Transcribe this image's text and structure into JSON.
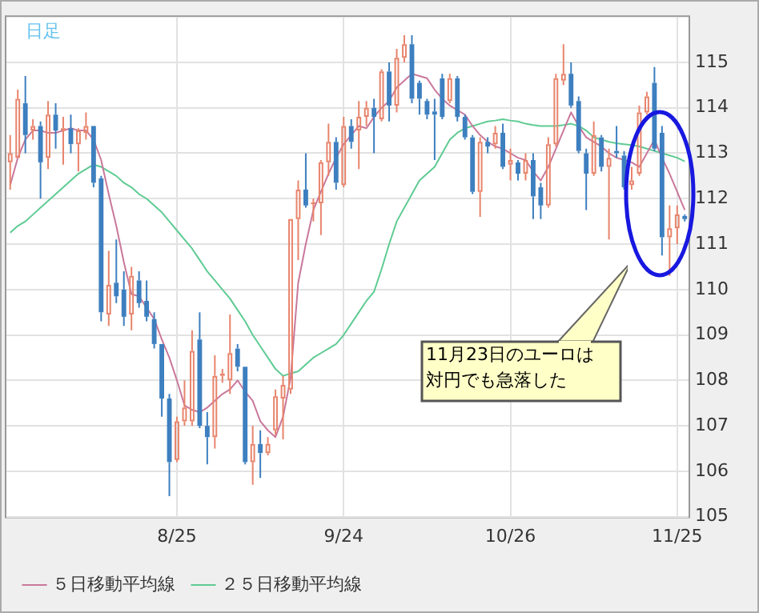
{
  "chart_data": {
    "type": "candlestick",
    "categories": [
      null,
      null,
      null,
      null,
      null,
      null,
      null,
      null,
      null,
      null,
      null,
      null,
      null,
      null,
      null,
      null,
      null,
      null,
      null,
      null,
      null,
      null,
      "8/25",
      null,
      null,
      null,
      null,
      null,
      null,
      null,
      null,
      null,
      null,
      null,
      null,
      null,
      null,
      null,
      null,
      null,
      null,
      null,
      null,
      null,
      "9/24",
      null,
      null,
      null,
      null,
      null,
      null,
      null,
      null,
      null,
      null,
      null,
      null,
      null,
      null,
      null,
      null,
      null,
      null,
      null,
      null,
      null,
      "10/26",
      null,
      null,
      null,
      null,
      null,
      null,
      null,
      null,
      null,
      null,
      null,
      null,
      null,
      null,
      null,
      null,
      null,
      null,
      null,
      null,
      null,
      "11/25",
      null
    ],
    "ohlc": [
      [
        112.8,
        113.4,
        112.2,
        113.0
      ],
      [
        112.9,
        114.4,
        112.9,
        114.2
      ],
      [
        114.1,
        114.7,
        113.0,
        113.4
      ],
      [
        113.5,
        113.75,
        113.3,
        113.6
      ],
      [
        113.6,
        113.7,
        112.0,
        112.8
      ],
      [
        112.9,
        114.15,
        112.65,
        113.85
      ],
      [
        113.85,
        114.1,
        113.1,
        113.5
      ],
      [
        113.5,
        113.8,
        112.75,
        113.55
      ],
      [
        113.55,
        113.85,
        113.0,
        113.2
      ],
      [
        113.2,
        113.55,
        112.6,
        113.5
      ],
      [
        113.45,
        113.9,
        113.3,
        113.6
      ],
      [
        113.6,
        113.6,
        112.25,
        112.35
      ],
      [
        112.45,
        112.5,
        109.3,
        109.5
      ],
      [
        109.45,
        110.85,
        109.2,
        110.1
      ],
      [
        110.15,
        111.1,
        109.7,
        109.85
      ],
      [
        110.0,
        110.4,
        109.2,
        109.4
      ],
      [
        109.45,
        110.5,
        109.1,
        110.3
      ],
      [
        110.2,
        110.4,
        109.6,
        109.7
      ],
      [
        109.75,
        110.2,
        109.3,
        109.4
      ],
      [
        109.35,
        109.5,
        108.7,
        108.8
      ],
      [
        108.8,
        108.8,
        107.2,
        107.6
      ],
      [
        107.6,
        107.7,
        105.45,
        106.2
      ],
      [
        106.25,
        107.2,
        106.2,
        107.1
      ],
      [
        107.1,
        108.0,
        107.0,
        107.4
      ],
      [
        107.1,
        109.1,
        107.0,
        108.65
      ],
      [
        108.9,
        109.5,
        106.95,
        107.0
      ],
      [
        107.0,
        107.3,
        106.15,
        106.75
      ],
      [
        106.75,
        108.55,
        106.5,
        108.1
      ],
      [
        108.1,
        108.25,
        107.95,
        108.15
      ],
      [
        108.0,
        109.45,
        107.7,
        108.6
      ],
      [
        108.7,
        108.8,
        108.2,
        108.3
      ],
      [
        108.3,
        108.3,
        106.15,
        106.2
      ],
      [
        106.2,
        107.0,
        105.7,
        106.6
      ],
      [
        106.6,
        106.9,
        105.85,
        106.4
      ],
      [
        106.4,
        106.75,
        106.35,
        106.6
      ],
      [
        106.9,
        107.8,
        106.8,
        107.65
      ],
      [
        107.6,
        108.1,
        106.7,
        107.9
      ],
      [
        107.8,
        111.55,
        107.7,
        111.55
      ],
      [
        111.55,
        112.4,
        110.65,
        112.2
      ],
      [
        112.2,
        113.0,
        111.8,
        111.85
      ],
      [
        111.88,
        112.0,
        111.5,
        111.92
      ],
      [
        111.9,
        112.85,
        111.2,
        112.8
      ],
      [
        112.8,
        113.65,
        112.5,
        113.25
      ],
      [
        113.25,
        113.35,
        112.2,
        112.35
      ],
      [
        112.3,
        113.8,
        112.25,
        113.6
      ],
      [
        113.6,
        113.75,
        113.1,
        113.25
      ],
      [
        113.5,
        114.15,
        112.65,
        113.8
      ],
      [
        113.8,
        114.15,
        113.6,
        114.0
      ],
      [
        114.0,
        114.2,
        113.0,
        113.8
      ],
      [
        113.75,
        114.85,
        113.7,
        114.8
      ],
      [
        114.8,
        115.0,
        113.7,
        114.05
      ],
      [
        114.05,
        115.3,
        113.9,
        115.1
      ],
      [
        115.1,
        115.6,
        115.0,
        115.4
      ],
      [
        115.4,
        115.6,
        114.1,
        114.2
      ],
      [
        114.55,
        114.6,
        113.85,
        114.2
      ],
      [
        114.15,
        114.2,
        113.75,
        113.85
      ],
      [
        113.92,
        114.2,
        112.85,
        113.85
      ],
      [
        114.65,
        114.75,
        113.75,
        113.8
      ],
      [
        114.15,
        114.75,
        114.1,
        114.65
      ],
      [
        114.65,
        114.7,
        113.7,
        113.8
      ],
      [
        113.8,
        113.85,
        113.3,
        113.35
      ],
      [
        113.35,
        113.4,
        112.1,
        112.15
      ],
      [
        112.15,
        113.35,
        111.6,
        113.25
      ],
      [
        113.25,
        113.35,
        113.0,
        113.15
      ],
      [
        113.2,
        113.6,
        113.1,
        113.45
      ],
      [
        113.45,
        113.65,
        112.65,
        112.7
      ],
      [
        112.75,
        113.1,
        112.4,
        112.85
      ],
      [
        112.8,
        112.85,
        112.4,
        112.55
      ],
      [
        112.55,
        113.0,
        112.4,
        112.85
      ],
      [
        112.85,
        113.0,
        111.55,
        112.05
      ],
      [
        112.25,
        112.35,
        111.55,
        111.85
      ],
      [
        111.85,
        113.35,
        111.8,
        113.2
      ],
      [
        113.2,
        114.75,
        113.15,
        114.65
      ],
      [
        114.6,
        115.4,
        114.5,
        114.75
      ],
      [
        114.75,
        115.0,
        114.0,
        114.05
      ],
      [
        114.15,
        114.25,
        113.0,
        113.05
      ],
      [
        113.0,
        113.1,
        111.75,
        112.55
      ],
      [
        112.55,
        113.7,
        112.5,
        113.4
      ],
      [
        113.35,
        113.4,
        112.6,
        112.7
      ],
      [
        112.7,
        113.1,
        111.1,
        112.9
      ],
      [
        113.05,
        113.6,
        112.9,
        113.0
      ],
      [
        112.95,
        113.05,
        112.2,
        112.25
      ],
      [
        112.3,
        112.7,
        112.2,
        112.4
      ],
      [
        112.55,
        114.05,
        112.5,
        113.9
      ],
      [
        113.9,
        114.35,
        113.85,
        114.25
      ],
      [
        114.55,
        114.9,
        113.05,
        113.1
      ],
      [
        113.45,
        113.6,
        110.75,
        111.15
      ],
      [
        111.15,
        111.85,
        110.3,
        111.35
      ],
      [
        111.35,
        111.85,
        111.0,
        111.65
      ],
      [
        111.62,
        111.65,
        111.5,
        111.55
      ]
    ],
    "colors": [
      "#e8846c",
      "#e8846c",
      "#3d7fbf",
      "#e8846c",
      "#3d7fbf",
      "#e8846c",
      "#3d7fbf",
      "#e8846c",
      "#3d7fbf",
      "#e8846c",
      "#e8846c",
      "#3d7fbf",
      "#3d7fbf",
      "#e8846c",
      "#3d7fbf",
      "#3d7fbf",
      "#e8846c",
      "#3d7fbf",
      "#3d7fbf",
      "#3d7fbf",
      "#3d7fbf",
      "#3d7fbf",
      "#e8846c",
      "#e8846c",
      "#e8846c",
      "#3d7fbf",
      "#3d7fbf",
      "#e8846c",
      "#e8846c",
      "#e8846c",
      "#3d7fbf",
      "#3d7fbf",
      "#e8846c",
      "#3d7fbf",
      "#e8846c",
      "#e8846c",
      "#e8846c",
      "#e8846c",
      "#e8846c",
      "#3d7fbf",
      "#e8846c",
      "#e8846c",
      "#e8846c",
      "#3d7fbf",
      "#e8846c",
      "#3d7fbf",
      "#e8846c",
      "#e8846c",
      "#3d7fbf",
      "#e8846c",
      "#3d7fbf",
      "#e8846c",
      "#e8846c",
      "#3d7fbf",
      "#3d7fbf",
      "#3d7fbf",
      "#3d7fbf",
      "#3d7fbf",
      "#e8846c",
      "#3d7fbf",
      "#3d7fbf",
      "#3d7fbf",
      "#e8846c",
      "#3d7fbf",
      "#e8846c",
      "#3d7fbf",
      "#e8846c",
      "#3d7fbf",
      "#e8846c",
      "#3d7fbf",
      "#3d7fbf",
      "#e8846c",
      "#e8846c",
      "#e8846c",
      "#3d7fbf",
      "#3d7fbf",
      "#3d7fbf",
      "#e8846c",
      "#3d7fbf",
      "#e8846c",
      "#3d7fbf",
      "#3d7fbf",
      "#e8846c",
      "#e8846c",
      "#e8846c",
      "#3d7fbf",
      "#3d7fbf",
      "#e8846c",
      "#e8846c",
      "#3d7fbf"
    ],
    "series": [
      {
        "name": "５日移動平均線",
        "type": "line",
        "color": "#c9789b",
        "values": [
          112.3,
          112.9,
          113.3,
          113.5,
          113.5,
          113.45,
          113.45,
          113.5,
          113.55,
          113.5,
          113.5,
          113.3,
          112.85,
          112.1,
          111.4,
          110.6,
          109.9,
          109.85,
          109.6,
          109.35,
          108.9,
          108.5,
          108.0,
          107.45,
          107.35,
          107.3,
          107.4,
          107.55,
          107.7,
          107.8,
          108.0,
          107.75,
          107.55,
          107.1,
          106.9,
          106.75,
          107.2,
          108.05,
          110.15,
          111.0,
          111.75,
          112.15,
          112.55,
          112.9,
          113.2,
          113.4,
          113.6,
          113.55,
          113.8,
          114.0,
          114.15,
          114.45,
          114.6,
          114.75,
          114.7,
          114.65,
          114.4,
          114.2,
          114.05,
          113.95,
          113.85,
          113.6,
          113.4,
          113.25,
          113.15,
          113.1,
          113.0,
          112.9,
          112.85,
          112.6,
          112.4,
          112.7,
          113.1,
          113.5,
          113.9,
          113.6,
          113.35,
          113.25,
          113.15,
          113.0,
          112.9,
          112.85,
          112.8,
          112.7,
          113.0,
          113.3,
          112.9,
          112.55,
          112.15,
          111.75
        ]
      },
      {
        "name": "２５日移動平均線",
        "type": "line",
        "color": "#5fcb93",
        "values": [
          111.25,
          111.4,
          111.5,
          111.65,
          111.8,
          111.95,
          112.1,
          112.25,
          112.4,
          112.55,
          112.65,
          112.75,
          112.7,
          112.6,
          112.5,
          112.35,
          112.25,
          112.1,
          112.0,
          111.85,
          111.7,
          111.5,
          111.3,
          111.1,
          110.9,
          110.65,
          110.4,
          110.2,
          110.0,
          109.8,
          109.55,
          109.3,
          109.0,
          108.75,
          108.5,
          108.25,
          108.1,
          108.15,
          108.2,
          108.35,
          108.5,
          108.6,
          108.7,
          108.8,
          109.0,
          109.25,
          109.5,
          109.75,
          109.95,
          110.45,
          111.0,
          111.5,
          111.8,
          112.1,
          112.4,
          112.55,
          112.7,
          113.0,
          113.3,
          113.45,
          113.55,
          113.6,
          113.65,
          113.7,
          113.72,
          113.75,
          113.72,
          113.7,
          113.65,
          113.62,
          113.6,
          113.6,
          113.6,
          113.62,
          113.65,
          113.6,
          113.5,
          113.35,
          113.3,
          113.25,
          113.22,
          113.2,
          113.18,
          113.15,
          113.1,
          113.05,
          113.0,
          112.95,
          112.9,
          112.82
        ]
      }
    ],
    "ylim": [
      105,
      116
    ],
    "yticks": [
      105,
      106,
      107,
      108,
      109,
      110,
      111,
      112,
      113,
      114,
      115
    ],
    "grid": true,
    "legend": "bottom left",
    "marker": "none",
    "annotations": [
      "日足",
      "11月23日のユーロは対円でも急落した"
    ]
  }
}
